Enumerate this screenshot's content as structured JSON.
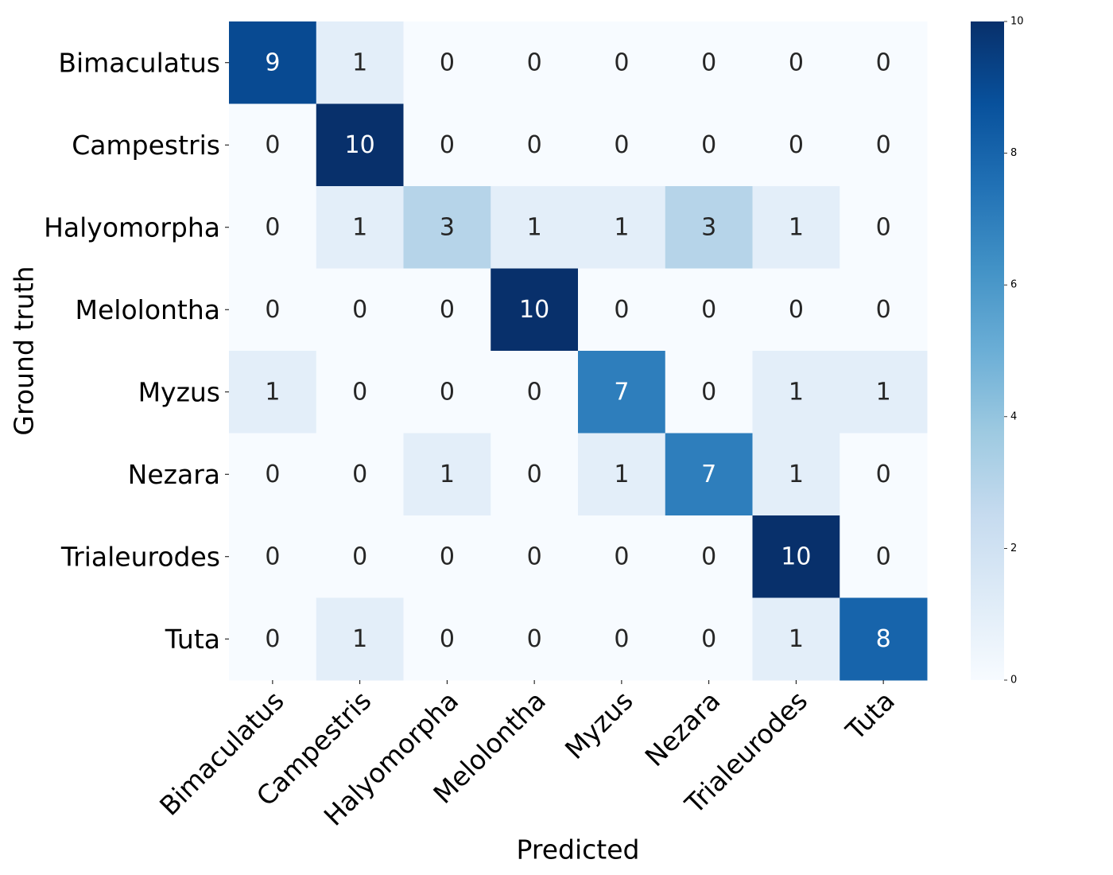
{
  "chart_data": {
    "type": "heatmap",
    "title": "",
    "xlabel": "Predicted",
    "ylabel": "Ground truth",
    "rows": [
      "Bimaculatus",
      "Campestris",
      "Halyomorpha",
      "Melolontha",
      "Myzus",
      "Nezara",
      "Trialeurodes",
      "Tuta"
    ],
    "columns": [
      "Bimaculatus",
      "Campestris",
      "Halyomorpha",
      "Melolontha",
      "Myzus",
      "Nezara",
      "Trialeurodes",
      "Tuta"
    ],
    "values": [
      [
        9,
        1,
        0,
        0,
        0,
        0,
        0,
        0
      ],
      [
        0,
        10,
        0,
        0,
        0,
        0,
        0,
        0
      ],
      [
        0,
        1,
        3,
        1,
        1,
        3,
        1,
        0
      ],
      [
        0,
        0,
        0,
        10,
        0,
        0,
        0,
        0
      ],
      [
        1,
        0,
        0,
        0,
        7,
        0,
        1,
        1
      ],
      [
        0,
        0,
        1,
        0,
        1,
        7,
        1,
        0
      ],
      [
        0,
        0,
        0,
        0,
        0,
        0,
        10,
        0
      ],
      [
        0,
        1,
        0,
        0,
        0,
        0,
        1,
        8
      ]
    ],
    "vmin": 0,
    "vmax": 10,
    "colormap": "Blues",
    "colorbar_ticks": [
      "0",
      "2",
      "4",
      "6",
      "8",
      "10"
    ],
    "colorbar_tick_values": [
      0,
      2,
      4,
      6,
      8,
      10
    ]
  }
}
